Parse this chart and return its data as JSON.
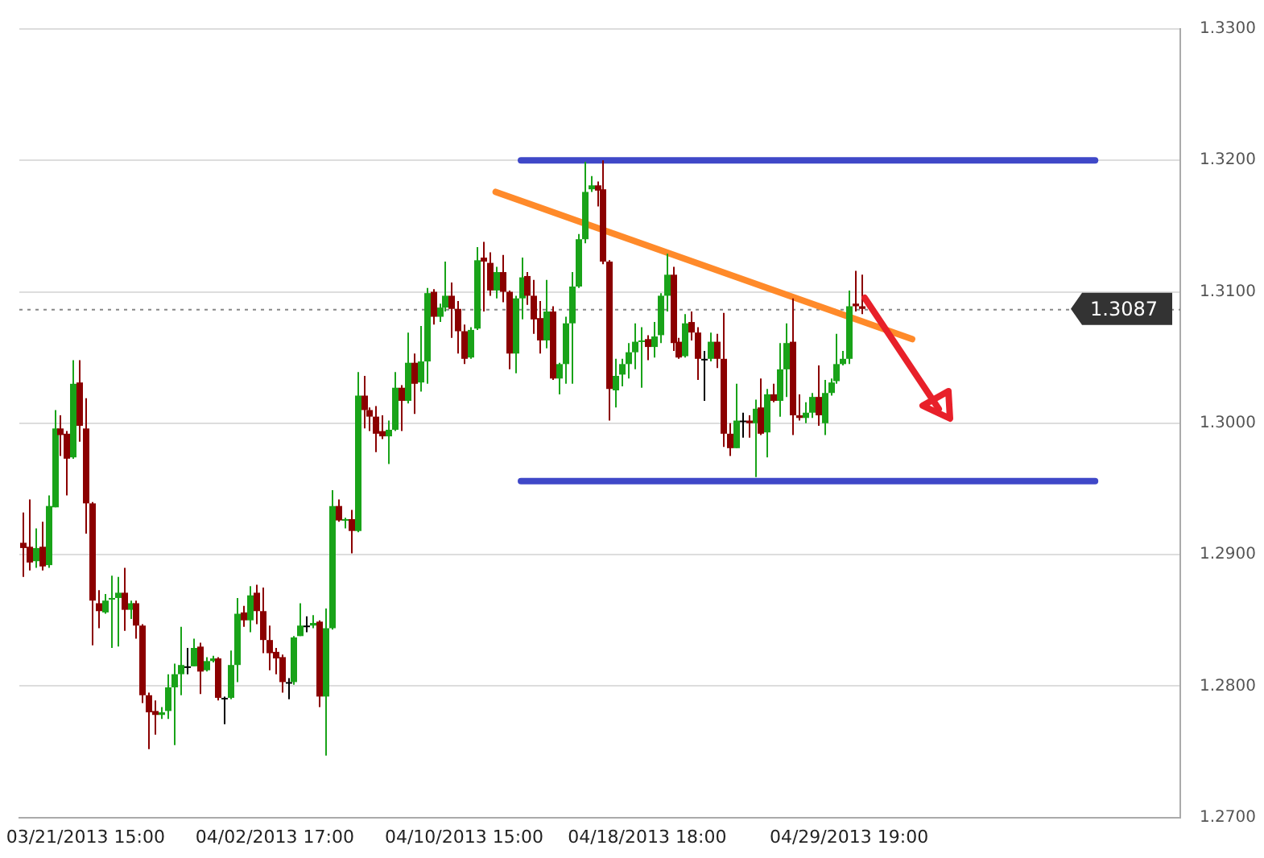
{
  "chart_data": {
    "type": "candlestick",
    "categories": [
      null,
      null,
      null,
      null,
      null,
      null,
      null,
      null,
      null,
      null,
      "03/21/2013 15:00",
      null,
      null,
      null,
      null,
      null,
      null,
      null,
      null,
      null,
      null,
      null,
      null,
      null,
      null,
      null,
      null,
      null,
      null,
      null,
      null,
      null,
      null,
      null,
      null,
      null,
      null,
      null,
      null,
      null,
      "04/02/2013 17:00",
      null,
      null,
      null,
      null,
      null,
      null,
      null,
      null,
      null,
      null,
      null,
      null,
      null,
      null,
      null,
      null,
      null,
      null,
      null,
      null,
      null,
      null,
      null,
      null,
      null,
      null,
      null,
      null,
      null,
      "04/10/2013 15:00",
      null,
      null,
      null,
      null,
      null,
      null,
      null,
      null,
      null,
      null,
      null,
      null,
      null,
      null,
      null,
      null,
      null,
      null,
      null,
      null,
      null,
      null,
      null,
      null,
      null,
      null,
      null,
      null,
      "04/18/2013 18:00",
      null,
      null,
      null,
      null,
      null,
      null,
      null,
      null,
      null,
      null,
      null,
      null,
      null,
      null,
      null,
      null,
      null,
      null,
      null,
      null,
      null,
      null,
      null,
      null,
      null,
      null,
      null,
      null,
      null,
      null,
      null,
      "04/29/2013 19:00",
      null,
      null,
      null,
      null,
      null,
      null,
      null,
      null,
      null,
      null,
      null,
      null,
      null,
      null,
      null,
      null,
      null,
      null,
      null,
      null,
      null,
      null,
      null,
      null,
      null,
      null,
      null,
      null,
      null,
      null,
      null,
      null,
      null,
      null,
      null,
      null,
      null,
      null,
      null,
      null,
      null,
      null,
      null,
      null,
      null,
      null,
      null,
      null,
      null,
      null,
      null,
      null
    ],
    "ohlc": [
      [
        1.2909,
        1.2932,
        1.2883,
        1.2905
      ],
      [
        1.2906,
        1.2942,
        1.2888,
        1.2894
      ],
      [
        1.2895,
        1.292,
        1.289,
        1.2905
      ],
      [
        1.2906,
        1.2925,
        1.2888,
        1.2891
      ],
      [
        1.2892,
        1.2945,
        1.289,
        1.2937
      ],
      [
        1.2936,
        1.301,
        1.2936,
        1.2996
      ],
      [
        1.2996,
        1.3006,
        1.2975,
        1.2991
      ],
      [
        1.2992,
        1.2994,
        1.2945,
        1.2973
      ],
      [
        1.2974,
        1.3048,
        1.2973,
        1.303
      ],
      [
        1.3031,
        1.3048,
        1.2986,
        1.2998
      ],
      [
        1.2996,
        1.3019,
        1.2916,
        1.2939
      ],
      [
        1.2939,
        1.294,
        1.2831,
        1.2865
      ],
      [
        1.2863,
        1.2873,
        1.2844,
        1.2857
      ],
      [
        1.2856,
        1.287,
        1.2855,
        1.2865
      ],
      [
        1.2866,
        1.2884,
        1.2829,
        1.2867
      ],
      [
        1.2867,
        1.2883,
        1.283,
        1.2871
      ],
      [
        1.2871,
        1.289,
        1.2842,
        1.2858
      ],
      [
        1.2858,
        1.2865,
        1.2851,
        1.2863
      ],
      [
        1.2863,
        1.2865,
        1.2836,
        1.2846
      ],
      [
        1.2846,
        1.2847,
        1.2787,
        1.2793
      ],
      [
        1.2793,
        1.2795,
        1.2752,
        1.278
      ],
      [
        1.2781,
        1.2789,
        1.2763,
        1.2778
      ],
      [
        1.2778,
        1.2784,
        1.2775,
        1.278
      ],
      [
        1.2781,
        1.2809,
        1.2775,
        1.2799
      ],
      [
        1.2799,
        1.2817,
        1.2755,
        1.2809
      ],
      [
        1.2809,
        1.2845,
        1.2793,
        1.2816
      ],
      [
        1.2815,
        1.2829,
        1.2809,
        1.2815
      ],
      [
        1.2815,
        1.2836,
        1.2815,
        1.2829
      ],
      [
        1.283,
        1.2833,
        1.2794,
        1.2811
      ],
      [
        1.2812,
        1.2822,
        1.2811,
        1.2819
      ],
      [
        1.2819,
        1.2823,
        1.2818,
        1.2821
      ],
      [
        1.2821,
        1.2822,
        1.2789,
        1.2791
      ],
      [
        1.2791,
        1.2792,
        1.2771,
        1.279
      ],
      [
        1.2791,
        1.2827,
        1.279,
        1.2816
      ],
      [
        1.2816,
        1.2867,
        1.2803,
        1.2855
      ],
      [
        1.2856,
        1.2861,
        1.2845,
        1.285
      ],
      [
        1.285,
        1.2876,
        1.2841,
        1.2869
      ],
      [
        1.2871,
        1.2877,
        1.2847,
        1.2857
      ],
      [
        1.2857,
        1.2875,
        1.2825,
        1.2835
      ],
      [
        1.2835,
        1.2846,
        1.2812,
        1.2825
      ],
      [
        1.2826,
        1.2829,
        1.2809,
        1.2821
      ],
      [
        1.2822,
        1.2824,
        1.2795,
        1.2803
      ],
      [
        1.2803,
        1.2806,
        1.279,
        1.2803
      ],
      [
        1.2803,
        1.2838,
        1.2801,
        1.2837
      ],
      [
        1.2838,
        1.2863,
        1.2838,
        1.2846
      ],
      [
        1.2846,
        1.2853,
        1.2841,
        1.2846
      ],
      [
        1.2846,
        1.2854,
        1.2844,
        1.2848
      ],
      [
        1.2849,
        1.285,
        1.2784,
        1.2792
      ],
      [
        1.2792,
        1.2859,
        1.2747,
        1.2844
      ],
      [
        1.2844,
        1.2949,
        1.2843,
        1.2937
      ],
      [
        1.2937,
        1.2942,
        1.2925,
        1.2926
      ],
      [
        1.2926,
        1.2928,
        1.292,
        1.2927
      ],
      [
        1.2927,
        1.2934,
        1.2901,
        1.2918
      ],
      [
        1.2918,
        1.3039,
        1.2917,
        1.3021
      ],
      [
        1.3021,
        1.3036,
        1.2996,
        1.301
      ],
      [
        1.301,
        1.3012,
        1.2994,
        1.3005
      ],
      [
        1.3005,
        1.3013,
        1.2978,
        1.2992
      ],
      [
        1.2994,
        1.3006,
        1.2988,
        1.299
      ],
      [
        1.299,
        1.3002,
        1.2969,
        1.2995
      ],
      [
        1.2995,
        1.3039,
        1.2994,
        1.3027
      ],
      [
        1.3027,
        1.3029,
        1.2994,
        1.3017
      ],
      [
        1.3017,
        1.3069,
        1.3015,
        1.3046
      ],
      [
        1.3046,
        1.3053,
        1.3007,
        1.303
      ],
      [
        1.3031,
        1.3074,
        1.3024,
        1.3047
      ],
      [
        1.3047,
        1.3103,
        1.303,
        1.3099
      ],
      [
        1.31,
        1.3102,
        1.3075,
        1.3081
      ],
      [
        1.3081,
        1.3091,
        1.3077,
        1.3088
      ],
      [
        1.3088,
        1.3123,
        1.3085,
        1.3097
      ],
      [
        1.3097,
        1.3107,
        1.3065,
        1.3087
      ],
      [
        1.3087,
        1.3093,
        1.3053,
        1.307
      ],
      [
        1.307,
        1.3075,
        1.3045,
        1.3049
      ],
      [
        1.305,
        1.3073,
        1.3049,
        1.3071
      ],
      [
        1.3072,
        1.3134,
        1.3071,
        1.3124
      ],
      [
        1.3126,
        1.3138,
        1.3085,
        1.3123
      ],
      [
        1.3122,
        1.313,
        1.3097,
        1.3101
      ],
      [
        1.3101,
        1.3119,
        1.3095,
        1.3115
      ],
      [
        1.3115,
        1.3128,
        1.3092,
        1.31
      ],
      [
        1.31,
        1.3101,
        1.3041,
        1.3053
      ],
      [
        1.3053,
        1.3097,
        1.3038,
        1.3095
      ],
      [
        1.3095,
        1.3126,
        1.3079,
        1.3111
      ],
      [
        1.3112,
        1.3115,
        1.309,
        1.3097
      ],
      [
        1.3097,
        1.3109,
        1.3068,
        1.3079
      ],
      [
        1.308,
        1.3093,
        1.3053,
        1.3063
      ],
      [
        1.3063,
        1.3109,
        1.3057,
        1.3085
      ],
      [
        1.3085,
        1.3089,
        1.3033,
        1.3034
      ],
      [
        1.3034,
        1.3046,
        1.3022,
        1.3045
      ],
      [
        1.3045,
        1.3081,
        1.303,
        1.3076
      ],
      [
        1.3076,
        1.3115,
        1.303,
        1.3104
      ],
      [
        1.3104,
        1.3144,
        1.3103,
        1.314
      ],
      [
        1.314,
        1.3199,
        1.3137,
        1.3176
      ],
      [
        1.3178,
        1.3188,
        1.3176,
        1.3181
      ],
      [
        1.3181,
        1.3184,
        1.3165,
        1.3177
      ],
      [
        1.3178,
        1.32,
        1.3121,
        1.3123
      ],
      [
        1.3123,
        1.3124,
        1.3002,
        1.3026
      ],
      [
        1.3025,
        1.3049,
        1.3012,
        1.3036
      ],
      [
        1.3037,
        1.3049,
        1.3028,
        1.3045
      ],
      [
        1.3045,
        1.3061,
        1.3034,
        1.3054
      ],
      [
        1.3054,
        1.3076,
        1.3041,
        1.3062
      ],
      [
        1.3062,
        1.3073,
        1.3027,
        1.3063
      ],
      [
        1.3064,
        1.3067,
        1.3048,
        1.3058
      ],
      [
        1.3058,
        1.3077,
        1.305,
        1.3066
      ],
      [
        1.3067,
        1.3099,
        1.3061,
        1.3097
      ],
      [
        1.3097,
        1.3129,
        1.3085,
        1.3113
      ],
      [
        1.3113,
        1.3119,
        1.3055,
        1.3061
      ],
      [
        1.3062,
        1.3065,
        1.3049,
        1.305
      ],
      [
        1.3051,
        1.3083,
        1.305,
        1.3076
      ],
      [
        1.3077,
        1.3085,
        1.3063,
        1.3069
      ],
      [
        1.3069,
        1.3073,
        1.3033,
        1.3049
      ],
      [
        1.3049,
        1.3055,
        1.3017,
        1.3049
      ],
      [
        1.3049,
        1.3069,
        1.3047,
        1.3062
      ],
      [
        1.3062,
        1.3068,
        1.3042,
        1.3049
      ],
      [
        1.3049,
        1.3084,
        1.2982,
        1.2992
      ],
      [
        1.2992,
        1.3,
        1.2975,
        1.2981
      ],
      [
        1.2981,
        1.303,
        1.2981,
        1.3002
      ],
      [
        1.3002,
        1.3008,
        1.2989,
        1.3002
      ],
      [
        1.3002,
        1.3006,
        1.2989,
        1.3
      ],
      [
        1.3,
        1.3018,
        1.2959,
        1.3011
      ],
      [
        1.3012,
        1.3034,
        1.2991,
        1.2992
      ],
      [
        1.2993,
        1.3026,
        1.2974,
        1.3022
      ],
      [
        1.3022,
        1.303,
        1.3016,
        1.3017
      ],
      [
        1.3017,
        1.3061,
        1.3005,
        1.3041
      ],
      [
        1.3041,
        1.3076,
        1.302,
        1.3061
      ],
      [
        1.3062,
        1.3095,
        1.2991,
        1.3006
      ],
      [
        1.3006,
        1.3022,
        1.3002,
        1.3004
      ],
      [
        1.3004,
        1.3016,
        1.3,
        1.3008
      ],
      [
        1.3008,
        1.3023,
        1.3004,
        1.302
      ],
      [
        1.302,
        1.3044,
        1.2998,
        1.3006
      ],
      [
        1.3,
        1.3033,
        1.2991,
        1.3023
      ],
      [
        1.3023,
        1.3034,
        1.3021,
        1.3031
      ],
      [
        1.3032,
        1.3068,
        1.303,
        1.3045
      ],
      [
        1.3045,
        1.3055,
        1.3044,
        1.3049
      ],
      [
        1.3049,
        1.3101,
        1.3045,
        1.3089
      ],
      [
        1.3091,
        1.3116,
        1.3085,
        1.3089
      ],
      [
        1.3089,
        1.3113,
        1.3083,
        1.3087
      ],
      null,
      null,
      null,
      null,
      null,
      null,
      null,
      null,
      null,
      null,
      null,
      null,
      null,
      null,
      null,
      null,
      null,
      null,
      null,
      null,
      null,
      null,
      null,
      null,
      null,
      null,
      null,
      null,
      null,
      null,
      null,
      null,
      null,
      null,
      null,
      null,
      null,
      null,
      null,
      null,
      null,
      null,
      null,
      null,
      null,
      null,
      null,
      null,
      null,
      null
    ],
    "colors": [
      "#8b0000",
      "#8b0000",
      "#19a319",
      "#8b0000",
      "#19a319",
      "#19a319",
      "#8b0000",
      "#8b0000",
      "#19a319",
      "#8b0000",
      "#8b0000",
      "#8b0000",
      "#8b0000",
      "#19a319",
      "#19a319",
      "#19a319",
      "#8b0000",
      "#19a319",
      "#8b0000",
      "#8b0000",
      "#8b0000",
      "#8b0000",
      "#19a319",
      "#19a319",
      "#19a319",
      "#19a319",
      "#000000",
      "#19a319",
      "#8b0000",
      "#19a319",
      "#19a319",
      "#8b0000",
      "#000000",
      "#19a319",
      "#19a319",
      "#8b0000",
      "#19a319",
      "#8b0000",
      "#8b0000",
      "#8b0000",
      "#8b0000",
      "#8b0000",
      "#000000",
      "#19a319",
      "#19a319",
      "#000000",
      "#19a319",
      "#8b0000",
      "#19a319",
      "#19a319",
      "#8b0000",
      "#19a319",
      "#8b0000",
      "#19a319",
      "#8b0000",
      "#8b0000",
      "#8b0000",
      "#8b0000",
      "#19a319",
      "#19a319",
      "#8b0000",
      "#19a319",
      "#8b0000",
      "#19a319",
      "#19a319",
      "#8b0000",
      "#19a319",
      "#19a319",
      "#8b0000",
      "#8b0000",
      "#8b0000",
      "#19a319",
      "#19a319",
      "#8b0000",
      "#8b0000",
      "#19a319",
      "#8b0000",
      "#8b0000",
      "#19a319",
      "#19a319",
      "#8b0000",
      "#8b0000",
      "#8b0000",
      "#19a319",
      "#8b0000",
      "#19a319",
      "#19a319",
      "#19a319",
      "#19a319",
      "#19a319",
      "#19a319",
      "#8b0000",
      "#8b0000",
      "#8b0000",
      "#19a319",
      "#19a319",
      "#19a319",
      "#19a319",
      "#19a319",
      "#8b0000",
      "#19a319",
      "#19a319",
      "#19a319",
      "#8b0000",
      "#8b0000",
      "#19a319",
      "#8b0000",
      "#8b0000",
      "#000000",
      "#19a319",
      "#8b0000",
      "#8b0000",
      "#8b0000",
      "#19a319",
      "#000000",
      "#8b0000",
      "#19a319",
      "#8b0000",
      "#19a319",
      "#8b0000",
      "#19a319",
      "#19a319",
      "#8b0000",
      "#8b0000",
      "#19a319",
      "#19a319",
      "#8b0000",
      "#19a319",
      "#19a319",
      "#19a319",
      "#19a319",
      "#19a319",
      "#8b0000",
      "#8b0000",
      null,
      null,
      null,
      null,
      null,
      null,
      null,
      null,
      null,
      null,
      null,
      null,
      null,
      null,
      null,
      null,
      null,
      null,
      null,
      null,
      null,
      null,
      null,
      null,
      null,
      null,
      null,
      null,
      null,
      null,
      null,
      null,
      null,
      null,
      null,
      null,
      null,
      null,
      null,
      null,
      null,
      null,
      null,
      null,
      null,
      null,
      null,
      null,
      null,
      null
    ],
    "series": [
      {
        "type": "line",
        "color": "#ff8a2a",
        "values": [
          null,
          null,
          null,
          null,
          null,
          null,
          null,
          null,
          null,
          null,
          null,
          null,
          null,
          null,
          null,
          null,
          null,
          null,
          null,
          null,
          null,
          null,
          null,
          null,
          null,
          null,
          null,
          null,
          null,
          null,
          null,
          null,
          null,
          null,
          null,
          null,
          null,
          null,
          null,
          null,
          null,
          null,
          null,
          null,
          null,
          null,
          null,
          null,
          null,
          null,
          null,
          null,
          null,
          null,
          null,
          null,
          null,
          null,
          null,
          null,
          null,
          null,
          null,
          null,
          null,
          null,
          null,
          null,
          null,
          null,
          null,
          null,
          null,
          null,
          null,
          1.3176,
          null,
          null,
          null,
          null,
          null,
          null,
          null,
          null,
          null,
          null,
          null,
          null,
          null,
          null,
          null,
          null,
          null,
          null,
          null,
          null,
          null,
          null,
          null,
          null,
          null,
          null,
          null,
          null,
          null,
          null,
          null,
          null,
          null,
          null,
          null,
          null,
          null,
          null,
          null,
          null,
          null,
          null,
          null,
          null,
          null,
          null,
          null,
          null,
          null,
          null,
          null,
          null,
          null,
          null,
          null,
          null,
          null,
          null,
          null,
          null,
          null,
          null,
          null,
          null,
          null,
          1.3064,
          null,
          null,
          null,
          null,
          null,
          null,
          null,
          null,
          null,
          null,
          null,
          null,
          null,
          null,
          null,
          null,
          null,
          null,
          null,
          null,
          null,
          null,
          null,
          null,
          null,
          null,
          null,
          null,
          null,
          null,
          null,
          null,
          null,
          null,
          null,
          null,
          null,
          null,
          null,
          null,
          null,
          null
        ]
      },
      {
        "type": "line",
        "color": "#3f48c8",
        "values": [
          null,
          null,
          null,
          null,
          null,
          null,
          null,
          null,
          null,
          null,
          null,
          null,
          null,
          null,
          null,
          null,
          null,
          null,
          null,
          null,
          null,
          null,
          null,
          null,
          null,
          null,
          null,
          null,
          null,
          null,
          null,
          null,
          null,
          null,
          null,
          null,
          null,
          null,
          null,
          null,
          null,
          null,
          null,
          null,
          null,
          null,
          null,
          null,
          null,
          null,
          null,
          null,
          null,
          null,
          null,
          null,
          null,
          null,
          null,
          null,
          null,
          null,
          null,
          null,
          null,
          null,
          null,
          null,
          null,
          null,
          null,
          null,
          null,
          null,
          null,
          null,
          null,
          null,
          null,
          1.32,
          null,
          null,
          null,
          null,
          null,
          null,
          null,
          null,
          null,
          null,
          null,
          null,
          null,
          null,
          null,
          null,
          null,
          null,
          null,
          null,
          null,
          null,
          null,
          null,
          null,
          null,
          null,
          null,
          null,
          null,
          null,
          null,
          null,
          null,
          null,
          null,
          null,
          null,
          null,
          null,
          null,
          null,
          null,
          null,
          null,
          null,
          null,
          null,
          null,
          null,
          null,
          null,
          null,
          null,
          null,
          null,
          null,
          null,
          null,
          null,
          null,
          null,
          null,
          null,
          null,
          null,
          null,
          null,
          null,
          null,
          null,
          null,
          null,
          null,
          null,
          null,
          null,
          null,
          null,
          null,
          null,
          null,
          null,
          null,
          null,
          null,
          null,
          null,
          null,
          null,
          1.32,
          null,
          null,
          null,
          null,
          null,
          null,
          null,
          null,
          null,
          null,
          null,
          null,
          null
        ]
      },
      {
        "type": "line",
        "color": "#3f48c8",
        "values": [
          null,
          null,
          null,
          null,
          null,
          null,
          null,
          null,
          null,
          null,
          null,
          null,
          null,
          null,
          null,
          null,
          null,
          null,
          null,
          null,
          null,
          null,
          null,
          null,
          null,
          null,
          null,
          null,
          null,
          null,
          null,
          null,
          null,
          null,
          null,
          null,
          null,
          null,
          null,
          null,
          null,
          null,
          null,
          null,
          null,
          null,
          null,
          null,
          null,
          null,
          null,
          null,
          null,
          null,
          null,
          null,
          null,
          null,
          null,
          null,
          null,
          null,
          null,
          null,
          null,
          null,
          null,
          null,
          null,
          null,
          null,
          null,
          null,
          null,
          null,
          null,
          null,
          null,
          null,
          1.2956,
          null,
          null,
          null,
          null,
          null,
          null,
          null,
          null,
          null,
          null,
          null,
          null,
          null,
          null,
          null,
          null,
          null,
          null,
          null,
          null,
          null,
          null,
          null,
          null,
          null,
          null,
          null,
          null,
          null,
          null,
          null,
          null,
          null,
          null,
          null,
          null,
          null,
          null,
          null,
          null,
          null,
          null,
          null,
          null,
          null,
          null,
          null,
          null,
          null,
          null,
          null,
          null,
          null,
          null,
          null,
          null,
          null,
          null,
          null,
          null,
          null,
          null,
          null,
          null,
          null,
          null,
          null,
          null,
          null,
          null,
          null,
          null,
          null,
          null,
          null,
          null,
          null,
          null,
          null,
          null,
          null,
          null,
          null,
          null,
          null,
          null,
          null,
          null,
          null,
          null,
          1.2956,
          null,
          null,
          null,
          null,
          null,
          null,
          null,
          null,
          null,
          null,
          null,
          null,
          null
        ]
      }
    ],
    "ref_lines": [
      {
        "axis": "y",
        "value": 1.3087,
        "label": "1.3087",
        "color": "#888888",
        "line_style": "dotted"
      }
    ],
    "ylim": [
      1.27,
      1.33
    ],
    "yticks": [
      {
        "value": 1.27,
        "label": "1.2700"
      },
      {
        "value": 1.28,
        "label": "1.2800"
      },
      {
        "value": 1.29,
        "label": "1.2900"
      },
      {
        "value": 1.3,
        "label": "1.3000"
      },
      {
        "value": 1.31,
        "label": "1.3100"
      },
      {
        "value": 1.32,
        "label": "1.3200"
      },
      {
        "value": 1.33,
        "label": "1.3300"
      }
    ],
    "grid": "y"
  }
}
